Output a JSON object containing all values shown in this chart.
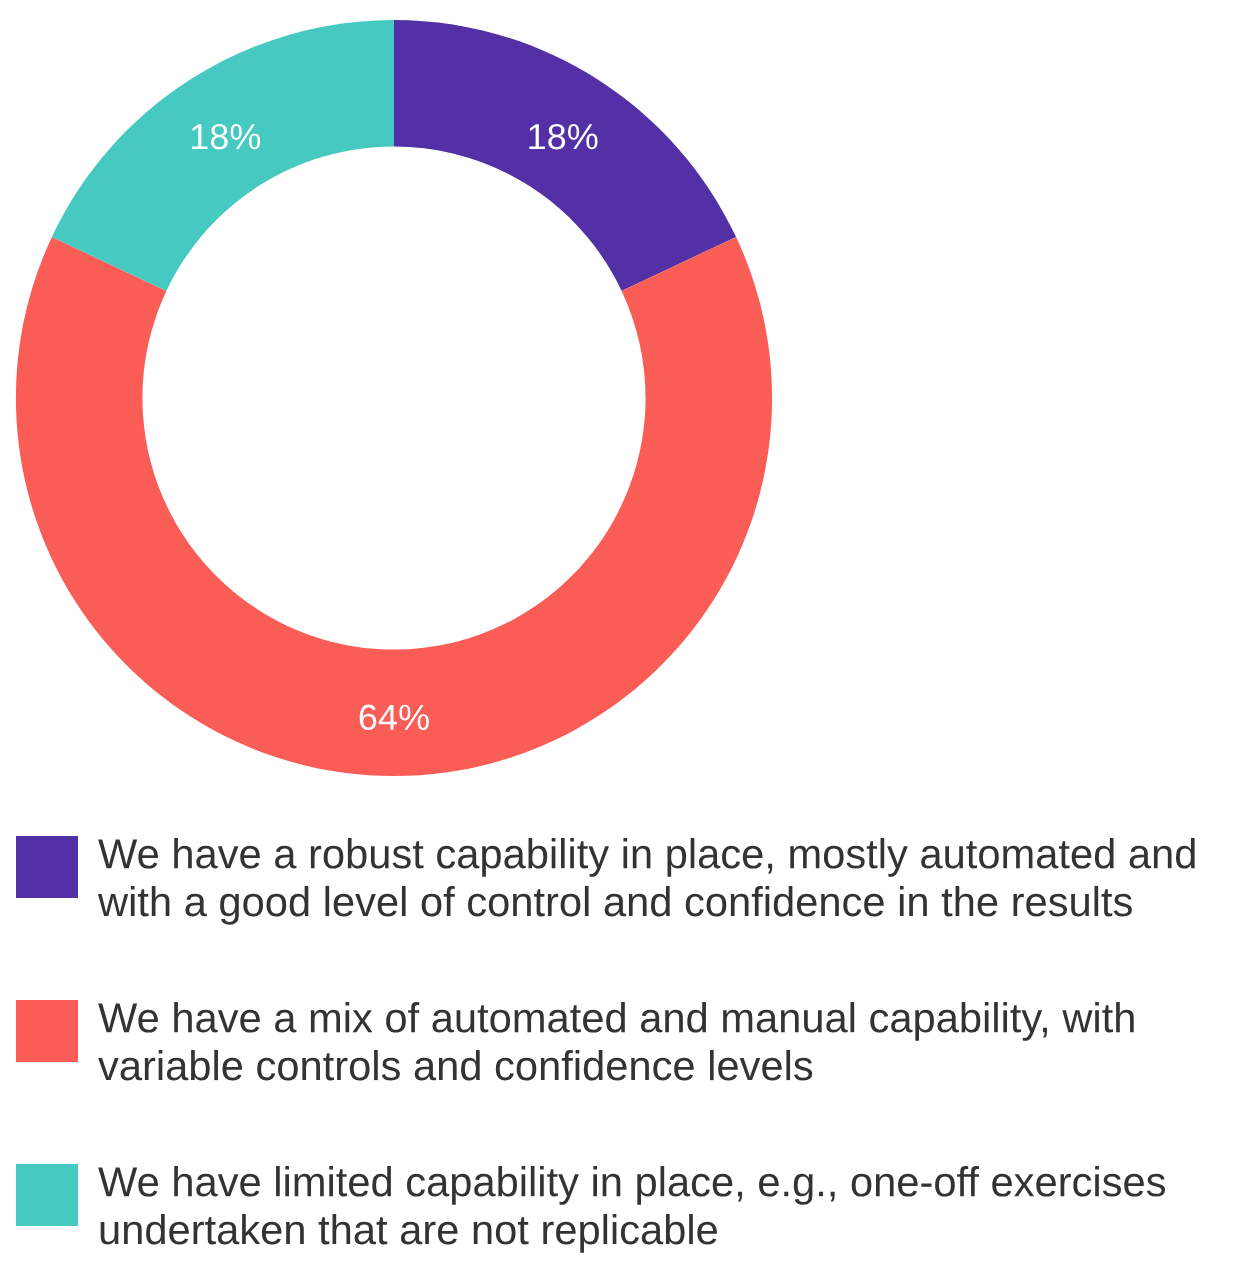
{
  "chart_data": {
    "type": "donut",
    "categories": [
      "We have a robust capability in place, mostly automated and with a good level of control and confidence in the results",
      "We have a mix of automated and manual capability, with variable controls and confidence levels",
      "We have limited capability in place, e.g., one-off exercises undertaken that are not replicable"
    ],
    "values": [
      18,
      64,
      18
    ],
    "colors": [
      "#5330a5",
      "#fa5d55",
      "#45c9c0"
    ],
    "value_labels": [
      "18%",
      "64%",
      "18%"
    ],
    "legend": "bottom"
  }
}
